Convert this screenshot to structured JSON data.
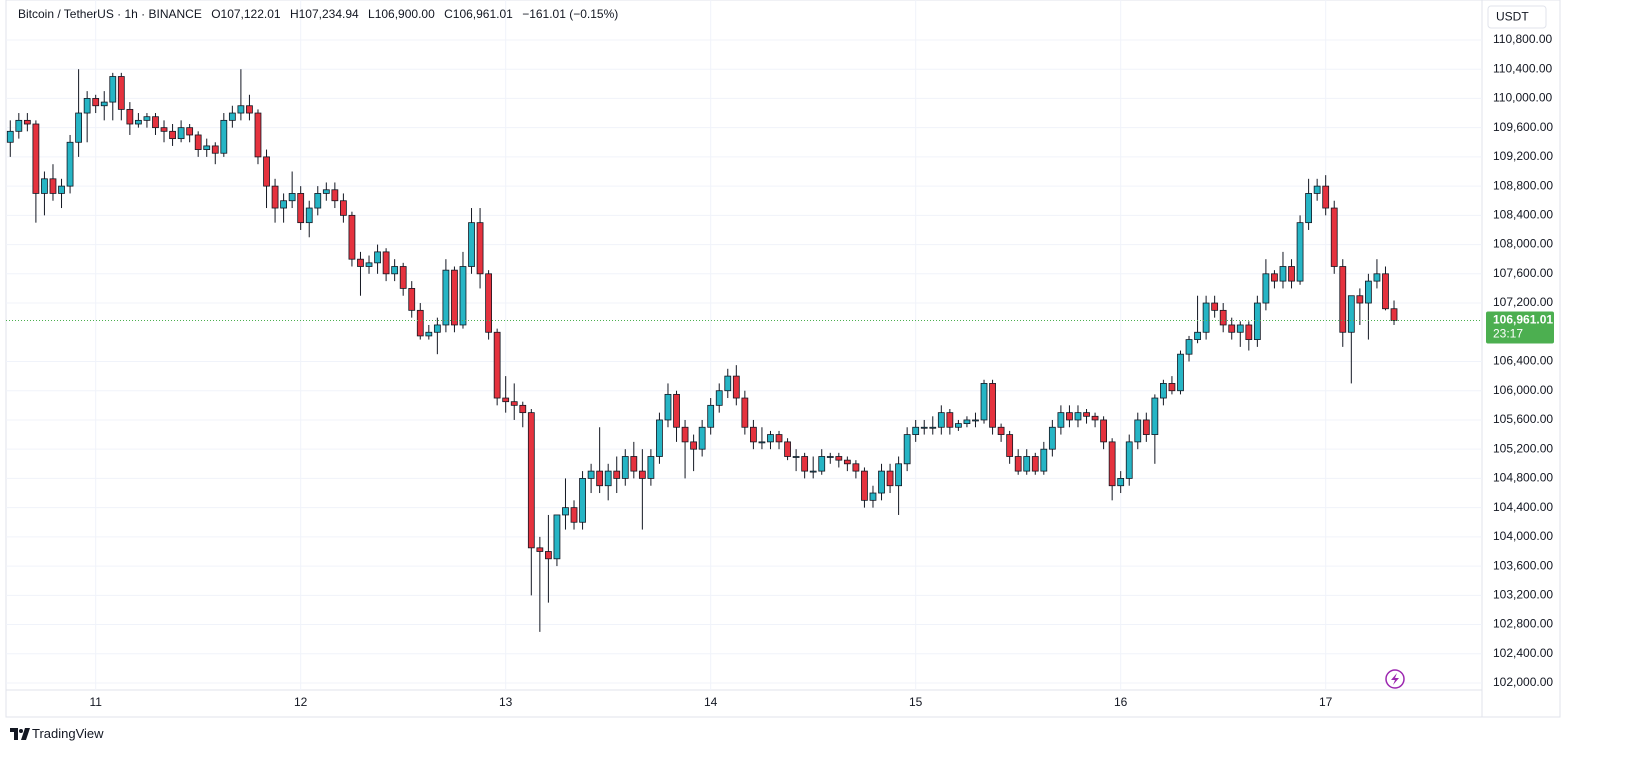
{
  "chart_data": {
    "type": "candlestick",
    "title": "Bitcoin / TetherUS · 1h · BINANCE",
    "header_labels": [
      "O",
      "H",
      "L",
      "C"
    ],
    "header_values": [
      "107,122.01",
      "107,234.94",
      "106,900.00",
      "106,961.01"
    ],
    "change": "−161.01 (−0.15%)",
    "currency": "USDT",
    "up_color": "#26b5c5",
    "down_color": "#e5323e",
    "wick_color": "#131722",
    "last_price": {
      "value": 106961.01,
      "label": "106,961.01",
      "countdown": "23:17",
      "color": "#4caf50"
    },
    "xlim": [
      -0.5,
      172.3
    ],
    "xticks": [
      {
        "value": 10,
        "label": "11"
      },
      {
        "value": 34,
        "label": "12"
      },
      {
        "value": 58,
        "label": "13"
      },
      {
        "value": 82,
        "label": "14"
      },
      {
        "value": 106,
        "label": "15"
      },
      {
        "value": 130,
        "label": "16"
      },
      {
        "value": 154,
        "label": "17"
      }
    ],
    "ylim": [
      101535,
      111347
    ],
    "yticks": [
      {
        "value": 102000,
        "label": "102,000.00"
      },
      {
        "value": 102400,
        "label": "102,400.00"
      },
      {
        "value": 102800,
        "label": "102,800.00"
      },
      {
        "value": 103200,
        "label": "103,200.00"
      },
      {
        "value": 103600,
        "label": "103,600.00"
      },
      {
        "value": 104000,
        "label": "104,000.00"
      },
      {
        "value": 104400,
        "label": "104,400.00"
      },
      {
        "value": 104800,
        "label": "104,800.00"
      },
      {
        "value": 105200,
        "label": "105,200.00"
      },
      {
        "value": 105600,
        "label": "105,600.00"
      },
      {
        "value": 106000,
        "label": "106,000.00"
      },
      {
        "value": 106400,
        "label": "106,400.00"
      },
      {
        "value": 107200,
        "label": "107,200.00"
      },
      {
        "value": 107600,
        "label": "107,600.00"
      },
      {
        "value": 108000,
        "label": "108,000.00"
      },
      {
        "value": 108400,
        "label": "108,400.00"
      },
      {
        "value": 108800,
        "label": "108,800.00"
      },
      {
        "value": 109200,
        "label": "109,200.00"
      },
      {
        "value": 109600,
        "label": "109,600.00"
      },
      {
        "value": 110000,
        "label": "110,000.00"
      },
      {
        "value": 110400,
        "label": "110,400.00"
      },
      {
        "value": 110800,
        "label": "110,800.00"
      }
    ],
    "grid": true,
    "ohlc": [
      [
        109400,
        109700,
        109200,
        109550
      ],
      [
        109550,
        109800,
        109450,
        109700
      ],
      [
        109700,
        109800,
        109550,
        109650
      ],
      [
        109650,
        109700,
        108300,
        108700
      ],
      [
        108700,
        109000,
        108400,
        108900
      ],
      [
        108900,
        109100,
        108600,
        108700
      ],
      [
        108700,
        108900,
        108500,
        108800
      ],
      [
        108800,
        109500,
        108700,
        109400
      ],
      [
        109400,
        110400,
        109200,
        109800
      ],
      [
        109800,
        110100,
        109400,
        110000
      ],
      [
        110000,
        110050,
        109800,
        109900
      ],
      [
        109900,
        110100,
        109700,
        109950
      ],
      [
        109950,
        110350,
        109700,
        110300
      ],
      [
        110300,
        110350,
        109700,
        109850
      ],
      [
        109850,
        109950,
        109500,
        109650
      ],
      [
        109650,
        109800,
        109600,
        109700
      ],
      [
        109700,
        109800,
        109600,
        109750
      ],
      [
        109750,
        109800,
        109500,
        109600
      ],
      [
        109600,
        109700,
        109400,
        109550
      ],
      [
        109550,
        109650,
        109350,
        109450
      ],
      [
        109450,
        109700,
        109400,
        109600
      ],
      [
        109600,
        109650,
        109400,
        109500
      ],
      [
        109500,
        109550,
        109200,
        109300
      ],
      [
        109300,
        109450,
        109200,
        109350
      ],
      [
        109350,
        109400,
        109100,
        109250
      ],
      [
        109250,
        109800,
        109200,
        109700
      ],
      [
        109700,
        109900,
        109600,
        109800
      ],
      [
        109800,
        110400,
        109700,
        109900
      ],
      [
        109900,
        110050,
        109700,
        109800
      ],
      [
        109800,
        109850,
        109100,
        109200
      ],
      [
        109200,
        109300,
        108500,
        108800
      ],
      [
        108800,
        108900,
        108300,
        108500
      ],
      [
        108500,
        108700,
        108300,
        108600
      ],
      [
        108600,
        109000,
        108500,
        108700
      ],
      [
        108700,
        108800,
        108200,
        108300
      ],
      [
        108300,
        108600,
        108100,
        108500
      ],
      [
        108500,
        108800,
        108400,
        108700
      ],
      [
        108700,
        108850,
        108600,
        108750
      ],
      [
        108750,
        108850,
        108500,
        108600
      ],
      [
        108600,
        108700,
        108300,
        108400
      ],
      [
        108400,
        108450,
        107700,
        107800
      ],
      [
        107800,
        107900,
        107300,
        107700
      ],
      [
        107700,
        107850,
        107600,
        107750
      ],
      [
        107750,
        108000,
        107600,
        107900
      ],
      [
        107900,
        107950,
        107500,
        107600
      ],
      [
        107600,
        107800,
        107500,
        107700
      ],
      [
        107700,
        107750,
        107300,
        107400
      ],
      [
        107400,
        107500,
        107000,
        107100
      ],
      [
        107100,
        107200,
        106700,
        106750
      ],
      [
        106750,
        106900,
        106700,
        106800
      ],
      [
        106800,
        107000,
        106500,
        106900
      ],
      [
        106900,
        107800,
        106800,
        107650
      ],
      [
        107650,
        107700,
        106800,
        106900
      ],
      [
        106900,
        107900,
        106850,
        107700
      ],
      [
        107700,
        108500,
        107600,
        108300
      ],
      [
        108300,
        108500,
        107400,
        107600
      ],
      [
        107600,
        107650,
        106700,
        106800
      ],
      [
        106800,
        106850,
        105800,
        105900
      ],
      [
        105900,
        106200,
        105700,
        105850
      ],
      [
        105850,
        106100,
        105600,
        105800
      ],
      [
        105800,
        105850,
        105500,
        105700
      ],
      [
        105700,
        105750,
        103200,
        103850
      ],
      [
        103850,
        104000,
        102700,
        103800
      ],
      [
        103800,
        104300,
        103100,
        103700
      ],
      [
        103700,
        104300,
        103600,
        104300
      ],
      [
        104300,
        104800,
        104100,
        104400
      ],
      [
        104400,
        104500,
        104100,
        104200
      ],
      [
        104200,
        104900,
        104100,
        104800
      ],
      [
        104800,
        105000,
        104600,
        104900
      ],
      [
        104900,
        105500,
        104600,
        104700
      ],
      [
        104700,
        105000,
        104500,
        104900
      ],
      [
        104900,
        105100,
        104600,
        104800
      ],
      [
        104800,
        105200,
        104700,
        105100
      ],
      [
        105100,
        105300,
        104800,
        104900
      ],
      [
        104900,
        105200,
        104100,
        104800
      ],
      [
        104800,
        105200,
        104700,
        105100
      ],
      [
        105100,
        105700,
        105000,
        105600
      ],
      [
        105600,
        106100,
        105500,
        105950
      ],
      [
        105950,
        106000,
        105300,
        105500
      ],
      [
        105500,
        105600,
        104800,
        105300
      ],
      [
        105300,
        105400,
        104900,
        105200
      ],
      [
        105200,
        105600,
        105100,
        105500
      ],
      [
        105500,
        105900,
        105400,
        105800
      ],
      [
        105800,
        106100,
        105700,
        106000
      ],
      [
        106000,
        106300,
        105900,
        106200
      ],
      [
        106200,
        106350,
        105800,
        105900
      ],
      [
        105900,
        106000,
        105400,
        105500
      ],
      [
        105500,
        105600,
        105200,
        105300
      ],
      [
        105300,
        105500,
        105200,
        105300
      ],
      [
        105300,
        105450,
        105200,
        105400
      ],
      [
        105400,
        105450,
        105200,
        105300
      ],
      [
        105300,
        105350,
        105050,
        105100
      ],
      [
        105100,
        105200,
        104900,
        105100
      ],
      [
        105100,
        105150,
        104800,
        104900
      ],
      [
        104900,
        105100,
        104800,
        104900
      ],
      [
        104900,
        105200,
        104850,
        105100
      ],
      [
        105100,
        105150,
        105000,
        105100
      ],
      [
        105100,
        105150,
        104950,
        105050
      ],
      [
        105050,
        105100,
        104900,
        105000
      ],
      [
        105000,
        105050,
        104800,
        104900
      ],
      [
        104900,
        104950,
        104400,
        104500
      ],
      [
        104500,
        104700,
        104400,
        104600
      ],
      [
        104600,
        105000,
        104500,
        104900
      ],
      [
        104900,
        105000,
        104600,
        104700
      ],
      [
        104700,
        105100,
        104300,
        105000
      ],
      [
        105000,
        105500,
        104900,
        105400
      ],
      [
        105400,
        105600,
        105300,
        105500
      ],
      [
        105500,
        105600,
        105400,
        105500
      ],
      [
        105500,
        105650,
        105400,
        105500
      ],
      [
        105500,
        105800,
        105400,
        105700
      ],
      [
        105700,
        105750,
        105400,
        105500
      ],
      [
        105500,
        105600,
        105450,
        105550
      ],
      [
        105550,
        105650,
        105500,
        105600
      ],
      [
        105600,
        105700,
        105500,
        105600
      ],
      [
        105600,
        106150,
        105550,
        106100
      ],
      [
        106100,
        106150,
        105400,
        105500
      ],
      [
        105500,
        105550,
        105300,
        105400
      ],
      [
        105400,
        105450,
        105000,
        105100
      ],
      [
        105100,
        105200,
        104850,
        104900
      ],
      [
        104900,
        105200,
        104850,
        105100
      ],
      [
        105100,
        105150,
        104850,
        104900
      ],
      [
        104900,
        105300,
        104850,
        105200
      ],
      [
        105200,
        105600,
        105100,
        105500
      ],
      [
        105500,
        105800,
        105400,
        105700
      ],
      [
        105700,
        105800,
        105500,
        105600
      ],
      [
        105600,
        105800,
        105500,
        105700
      ],
      [
        105700,
        105750,
        105550,
        105650
      ],
      [
        105650,
        105700,
        105500,
        105600
      ],
      [
        105600,
        105650,
        105200,
        105300
      ],
      [
        105300,
        105350,
        104500,
        104700
      ],
      [
        104700,
        104900,
        104600,
        104800
      ],
      [
        104800,
        105400,
        104700,
        105300
      ],
      [
        105300,
        105700,
        105200,
        105600
      ],
      [
        105600,
        105700,
        105300,
        105400
      ],
      [
        105400,
        105950,
        105000,
        105900
      ],
      [
        105900,
        106150,
        105800,
        106100
      ],
      [
        106100,
        106200,
        105950,
        106000
      ],
      [
        106000,
        106550,
        105950,
        106500
      ],
      [
        106500,
        106750,
        106400,
        106700
      ],
      [
        106700,
        107300,
        106650,
        106800
      ],
      [
        106800,
        107300,
        106700,
        107200
      ],
      [
        107200,
        107300,
        107000,
        107100
      ],
      [
        107100,
        107200,
        106800,
        106900
      ],
      [
        106900,
        107000,
        106700,
        106800
      ],
      [
        106800,
        106950,
        106600,
        106900
      ],
      [
        106900,
        106950,
        106550,
        106700
      ],
      [
        106700,
        107300,
        106600,
        107200
      ],
      [
        107200,
        107800,
        107100,
        107600
      ],
      [
        107600,
        107650,
        107400,
        107500
      ],
      [
        107500,
        107900,
        107400,
        107700
      ],
      [
        107700,
        107800,
        107400,
        107500
      ],
      [
        107500,
        108400,
        107450,
        108300
      ],
      [
        108300,
        108900,
        108200,
        108700
      ],
      [
        108700,
        108900,
        108600,
        108800
      ],
      [
        108800,
        108950,
        108400,
        108500
      ],
      [
        108500,
        108600,
        107600,
        107700
      ],
      [
        107700,
        107800,
        106600,
        106800
      ],
      [
        106800,
        107300,
        106100,
        107300
      ],
      [
        107300,
        107400,
        106900,
        107200
      ],
      [
        107200,
        107600,
        106700,
        107500
      ],
      [
        107500,
        107800,
        107400,
        107600
      ],
      [
        107600,
        107700,
        107100,
        107122.01
      ],
      [
        107122.01,
        107234.94,
        106900,
        106961.01
      ]
    ]
  },
  "footer": "TradingView"
}
